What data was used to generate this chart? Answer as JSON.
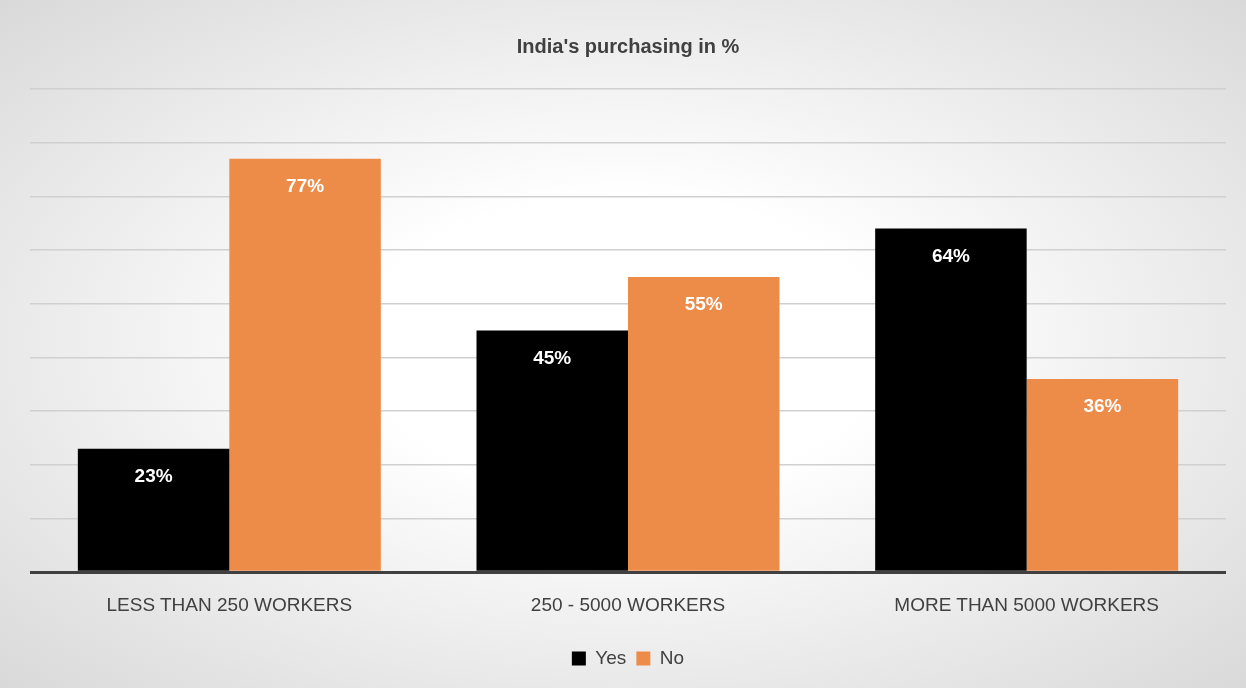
{
  "chart_data": {
    "type": "bar",
    "title": "India's purchasing in %",
    "categories": [
      "LESS THAN 250 WORKERS",
      "250 - 5000 WORKERS",
      "MORE THAN 5000 WORKERS"
    ],
    "series": [
      {
        "name": "Yes",
        "color": "#000000",
        "values": [
          23,
          45,
          64
        ],
        "value_labels": [
          "23%",
          "45%",
          "64%"
        ]
      },
      {
        "name": "No",
        "color": "#ed8b48",
        "values": [
          77,
          55,
          36
        ],
        "value_labels": [
          "77%",
          "55%",
          "36%"
        ]
      }
    ],
    "ylim": [
      0,
      90
    ],
    "yticks": [
      {
        "value": 0,
        "label": null
      },
      {
        "value": 10,
        "label": null
      },
      {
        "value": 20,
        "label": null
      },
      {
        "value": 30,
        "label": null
      },
      {
        "value": 40,
        "label": null
      },
      {
        "value": 50,
        "label": null
      },
      {
        "value": 60,
        "label": null
      },
      {
        "value": 70,
        "label": null
      },
      {
        "value": 80,
        "label": null
      },
      {
        "value": 90,
        "label": null
      }
    ],
    "tick_labels": "x",
    "grid": "y",
    "legend": "bottom"
  }
}
